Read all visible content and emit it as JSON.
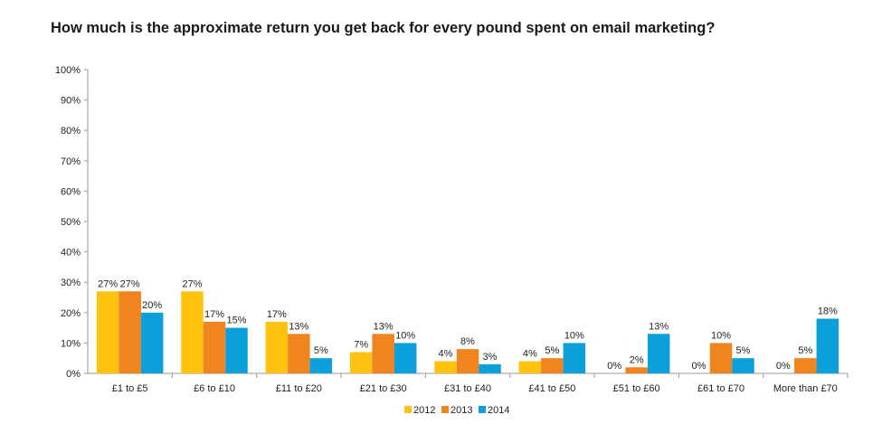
{
  "chart_data": {
    "type": "bar",
    "title": "How much is the approximate return you get back for every pound spent on email marketing?",
    "xlabel": "",
    "ylabel": "",
    "ylim": [
      0,
      100
    ],
    "y_ticks": [
      0,
      10,
      20,
      30,
      40,
      50,
      60,
      70,
      80,
      90,
      100
    ],
    "y_tick_suffix": "%",
    "grid": false,
    "legend_position": "bottom-center",
    "categories": [
      "£1 to £5",
      "£6 to £10",
      "£11 to £20",
      "£21 to £30",
      "£31 to £40",
      "£41 to £50",
      "£51 to £60",
      "£61 to £70",
      "More than £70"
    ],
    "series": [
      {
        "name": "2012",
        "color": "#FFC20E",
        "values": [
          27,
          27,
          17,
          7,
          4,
          4,
          0,
          0,
          0
        ]
      },
      {
        "name": "2013",
        "color": "#F0841E",
        "values": [
          27,
          17,
          13,
          13,
          8,
          5,
          2,
          10,
          5
        ]
      },
      {
        "name": "2014",
        "color": "#0B9FDB",
        "values": [
          20,
          15,
          5,
          10,
          3,
          10,
          13,
          5,
          18
        ]
      }
    ]
  }
}
